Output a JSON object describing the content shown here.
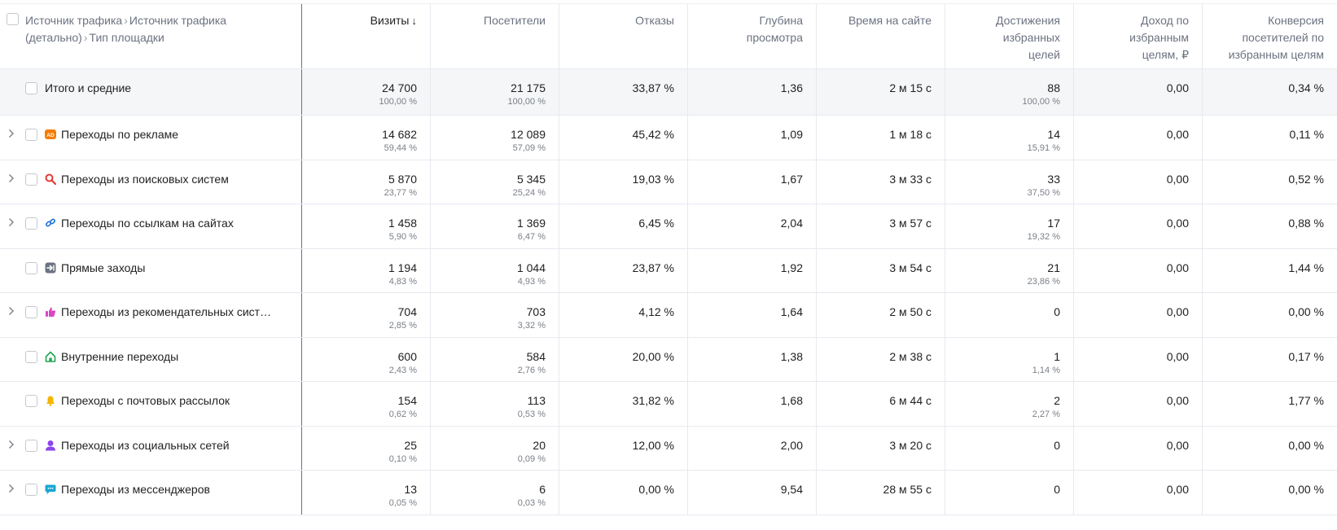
{
  "header": {
    "dimension_parts": [
      "Источник трафика",
      "Источник трафика (детально)",
      "Тип площадки"
    ],
    "columns": [
      {
        "label": "Визиты",
        "sorted": true
      },
      {
        "label": "Посетители"
      },
      {
        "label": "Отказы"
      },
      {
        "label": "Глубина просмотра"
      },
      {
        "label": "Время на сайте"
      },
      {
        "label": "Достижения избранных целей"
      },
      {
        "label": "Доход по избранным целям, ₽"
      },
      {
        "label": "Конверсия посетителей по избранным целям"
      }
    ],
    "sort_icon": "arrow-down-icon"
  },
  "total": {
    "label": "Итого и средние",
    "values": [
      {
        "v": "24 700",
        "p": "100,00 %"
      },
      {
        "v": "21 175",
        "p": "100,00 %"
      },
      {
        "v": "33,87 %",
        "p": ""
      },
      {
        "v": "1,36",
        "p": ""
      },
      {
        "v": "2 м 15 с",
        "p": ""
      },
      {
        "v": "88",
        "p": "100,00 %"
      },
      {
        "v": "0,00",
        "p": ""
      },
      {
        "v": "0,34 %",
        "p": ""
      }
    ]
  },
  "rows": [
    {
      "label": "Переходы по рекламе",
      "expandable": true,
      "icon": "ad-icon",
      "icon_color": "#f57c00",
      "values": [
        {
          "v": "14 682",
          "p": "59,44 %"
        },
        {
          "v": "12 089",
          "p": "57,09 %"
        },
        {
          "v": "45,42 %",
          "p": ""
        },
        {
          "v": "1,09",
          "p": ""
        },
        {
          "v": "1 м 18 с",
          "p": ""
        },
        {
          "v": "14",
          "p": "15,91 %"
        },
        {
          "v": "0,00",
          "p": ""
        },
        {
          "v": "0,11 %",
          "p": ""
        }
      ]
    },
    {
      "label": "Переходы из поисковых систем",
      "expandable": true,
      "icon": "search-icon",
      "icon_color": "#e53935",
      "values": [
        {
          "v": "5 870",
          "p": "23,77 %"
        },
        {
          "v": "5 345",
          "p": "25,24 %"
        },
        {
          "v": "19,03 %",
          "p": ""
        },
        {
          "v": "1,67",
          "p": ""
        },
        {
          "v": "3 м 33 с",
          "p": ""
        },
        {
          "v": "33",
          "p": "37,50 %"
        },
        {
          "v": "0,00",
          "p": ""
        },
        {
          "v": "0,52 %",
          "p": ""
        }
      ]
    },
    {
      "label": "Переходы по ссылкам на сайтах",
      "expandable": true,
      "icon": "link-icon",
      "icon_color": "#1e6fd9",
      "values": [
        {
          "v": "1 458",
          "p": "5,90 %"
        },
        {
          "v": "1 369",
          "p": "6,47 %"
        },
        {
          "v": "6,45 %",
          "p": ""
        },
        {
          "v": "2,04",
          "p": ""
        },
        {
          "v": "3 м 57 с",
          "p": ""
        },
        {
          "v": "17",
          "p": "19,32 %"
        },
        {
          "v": "0,00",
          "p": ""
        },
        {
          "v": "0,88 %",
          "p": ""
        }
      ]
    },
    {
      "label": "Прямые заходы",
      "expandable": false,
      "icon": "enter-icon",
      "icon_color": "#6b7280",
      "values": [
        {
          "v": "1 194",
          "p": "4,83 %"
        },
        {
          "v": "1 044",
          "p": "4,93 %"
        },
        {
          "v": "23,87 %",
          "p": ""
        },
        {
          "v": "1,92",
          "p": ""
        },
        {
          "v": "3 м 54 с",
          "p": ""
        },
        {
          "v": "21",
          "p": "23,86 %"
        },
        {
          "v": "0,00",
          "p": ""
        },
        {
          "v": "1,44 %",
          "p": ""
        }
      ]
    },
    {
      "label": "Переходы из рекомендательных сист…",
      "expandable": true,
      "icon": "thumbs-up-icon",
      "icon_color": "#d946c4",
      "values": [
        {
          "v": "704",
          "p": "2,85 %"
        },
        {
          "v": "703",
          "p": "3,32 %"
        },
        {
          "v": "4,12 %",
          "p": ""
        },
        {
          "v": "1,64",
          "p": ""
        },
        {
          "v": "2 м 50 с",
          "p": ""
        },
        {
          "v": "0",
          "p": ""
        },
        {
          "v": "0,00",
          "p": ""
        },
        {
          "v": "0,00 %",
          "p": ""
        }
      ]
    },
    {
      "label": "Внутренние переходы",
      "expandable": false,
      "icon": "home-icon",
      "icon_color": "#22a652",
      "values": [
        {
          "v": "600",
          "p": "2,43 %"
        },
        {
          "v": "584",
          "p": "2,76 %"
        },
        {
          "v": "20,00 %",
          "p": ""
        },
        {
          "v": "1,38",
          "p": ""
        },
        {
          "v": "2 м 38 с",
          "p": ""
        },
        {
          "v": "1",
          "p": "1,14 %"
        },
        {
          "v": "0,00",
          "p": ""
        },
        {
          "v": "0,17 %",
          "p": ""
        }
      ]
    },
    {
      "label": "Переходы с почтовых рассылок",
      "expandable": false,
      "icon": "bell-icon",
      "icon_color": "#f5b400",
      "values": [
        {
          "v": "154",
          "p": "0,62 %"
        },
        {
          "v": "113",
          "p": "0,53 %"
        },
        {
          "v": "31,82 %",
          "p": ""
        },
        {
          "v": "1,68",
          "p": ""
        },
        {
          "v": "6 м 44 с",
          "p": ""
        },
        {
          "v": "2",
          "p": "2,27 %"
        },
        {
          "v": "0,00",
          "p": ""
        },
        {
          "v": "1,77 %",
          "p": ""
        }
      ]
    },
    {
      "label": "Переходы из социальных сетей",
      "expandable": true,
      "icon": "user-icon",
      "icon_color": "#8e44ec",
      "values": [
        {
          "v": "25",
          "p": "0,10 %"
        },
        {
          "v": "20",
          "p": "0,09 %"
        },
        {
          "v": "12,00 %",
          "p": ""
        },
        {
          "v": "2,00",
          "p": ""
        },
        {
          "v": "3 м 20 с",
          "p": ""
        },
        {
          "v": "0",
          "p": ""
        },
        {
          "v": "0,00",
          "p": ""
        },
        {
          "v": "0,00 %",
          "p": ""
        }
      ]
    },
    {
      "label": "Переходы из мессенджеров",
      "expandable": true,
      "icon": "chat-bubble-icon",
      "icon_color": "#18a7d6",
      "values": [
        {
          "v": "13",
          "p": "0,05 %"
        },
        {
          "v": "6",
          "p": "0,03 %"
        },
        {
          "v": "0,00 %",
          "p": ""
        },
        {
          "v": "9,54",
          "p": ""
        },
        {
          "v": "28 м 55 с",
          "p": ""
        },
        {
          "v": "0",
          "p": ""
        },
        {
          "v": "0,00",
          "p": ""
        },
        {
          "v": "0,00 %",
          "p": ""
        }
      ]
    }
  ]
}
